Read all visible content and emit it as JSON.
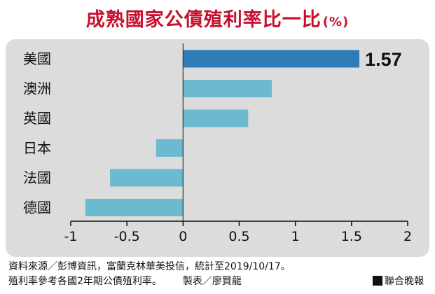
{
  "chart_data": {
    "type": "bar",
    "orientation": "horizontal",
    "title": "成熟國家公債殖利率比一比",
    "unit": "(%)",
    "categories": [
      "美國",
      "澳洲",
      "英國",
      "日本",
      "法國",
      "德國"
    ],
    "values": [
      1.57,
      0.79,
      0.58,
      -0.24,
      -0.65,
      -0.87
    ],
    "highlight_index": 0,
    "highlight_label": "1.57",
    "xlim": [
      -1,
      2
    ],
    "xticks": [
      "-1",
      "-0.5",
      "0",
      "0.5",
      "1",
      "1.5",
      "2"
    ],
    "xtick_values": [
      -1,
      -0.5,
      0,
      0.5,
      1,
      1.5,
      2
    ],
    "colors": {
      "bar": "#6cbad0",
      "highlight": "#2e7bb8",
      "title": "#c8102e",
      "panel": "#dcdcdc"
    },
    "grid": false,
    "legend": "none"
  },
  "footer": {
    "source": "資料來源／彭博資訊，富蘭克林華美投信，統計至2019/10/17。",
    "note": "殖利率參考各國2年期公債殖利率。",
    "maker": "製表／廖賢龍",
    "brand": "聯合晚報"
  }
}
